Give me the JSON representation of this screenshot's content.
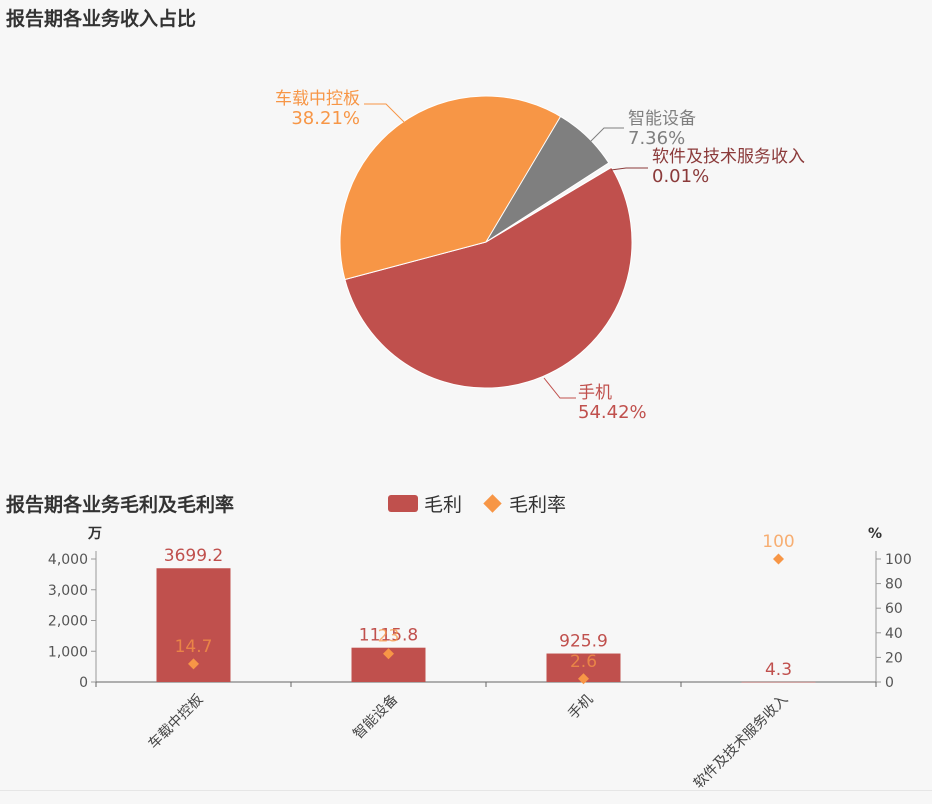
{
  "titles": {
    "pie": "报告期各业务收入占比",
    "bar": "报告期各业务毛利及毛利率"
  },
  "legend": {
    "bar_label": "毛利",
    "line_label": "毛利率"
  },
  "axis": {
    "left_unit": "万",
    "right_unit": "%"
  },
  "colors": {
    "phone": "#c0504d",
    "car": "#f79646",
    "smart": "#7f7f7f",
    "software": "#8b3a3a",
    "bar": "#c0504d",
    "rate": "#f79646"
  },
  "chart_data": [
    {
      "type": "pie",
      "title": "报告期各业务收入占比",
      "slices": [
        {
          "name": "手机",
          "percent": 54.42,
          "label": "54.42%",
          "color": "#c0504d"
        },
        {
          "name": "车载中控板",
          "percent": 38.21,
          "label": "38.21%",
          "color": "#f79646"
        },
        {
          "name": "智能设备",
          "percent": 7.36,
          "label": "7.36%",
          "color": "#7f7f7f"
        },
        {
          "name": "软件及技术服务收入",
          "percent": 0.01,
          "label": "0.01%",
          "color": "#8b3a3a"
        }
      ]
    },
    {
      "type": "bar",
      "title": "报告期各业务毛利及毛利率",
      "categories": [
        "车载中控板",
        "智能设备",
        "手机",
        "软件及技术服务收入"
      ],
      "series": [
        {
          "name": "毛利",
          "type": "bar",
          "axis": "left",
          "values": [
            3699.2,
            1115.8,
            925.9,
            4.3
          ],
          "labels": [
            "3699.2",
            "1115.8",
            "925.9",
            "4.3"
          ]
        },
        {
          "name": "毛利率",
          "type": "scatter",
          "axis": "right",
          "values": [
            14.7,
            23,
            2.6,
            100
          ],
          "labels": [
            "14.7",
            "23",
            "2.6",
            "100"
          ]
        }
      ],
      "y_left": {
        "min": 0,
        "max": 4000,
        "ticks": [
          0,
          1000,
          2000,
          3000,
          4000
        ],
        "tick_labels": [
          "0",
          "1,000",
          "2,000",
          "3,000",
          "4,000"
        ]
      },
      "y_right": {
        "min": 0,
        "max": 100,
        "ticks": [
          0,
          20,
          40,
          60,
          80,
          100
        ],
        "tick_labels": [
          "0",
          "20",
          "40",
          "60",
          "80",
          "100"
        ]
      }
    }
  ]
}
